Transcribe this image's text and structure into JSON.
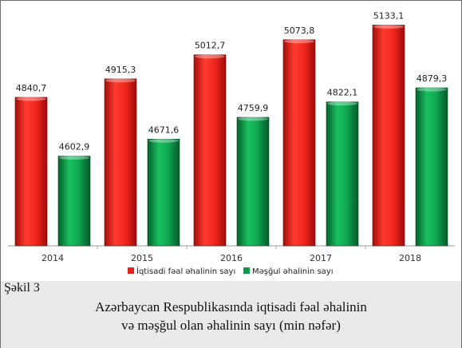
{
  "chart_data": {
    "type": "bar",
    "categories": [
      "2014",
      "2015",
      "2016",
      "2017",
      "2018"
    ],
    "series": [
      {
        "name": "İqtisadi fəal əhalinin sayı",
        "color": "#e8231c",
        "values": [
          4840.7,
          4915.3,
          5012.7,
          5073.8,
          5133.1
        ],
        "labels": [
          "4840,7",
          "4915,3",
          "5012,7",
          "5073,8",
          "5133,1"
        ]
      },
      {
        "name": "Məşğul əhalinin sayı",
        "color": "#0f9a4c",
        "values": [
          4602.9,
          4671.6,
          4759.9,
          4822.1,
          4879.3
        ],
        "labels": [
          "4602,9",
          "4671,6",
          "4759,9",
          "4822,1",
          "4879,3"
        ]
      }
    ],
    "ylim": [
      4240,
      5170
    ],
    "legend_position": "bottom",
    "grid": false
  },
  "figure": {
    "number": "Şəkil 3",
    "caption_line1": "Azərbaycan Respublikasında iqtisadi fəal əhalinin",
    "caption_line2": "və məşğul olan əhalinin sayı (min nəfər)"
  }
}
